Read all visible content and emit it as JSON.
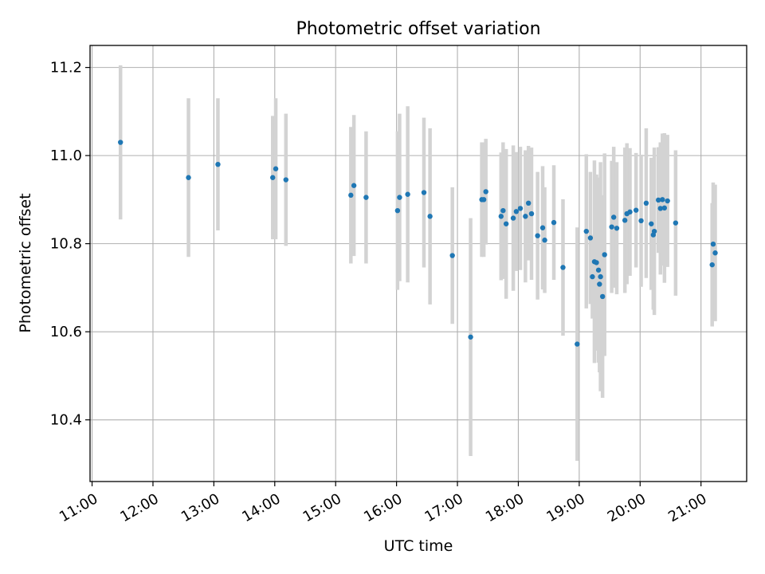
{
  "chart_data": {
    "type": "scatter",
    "title": "Photometric offset variation",
    "xlabel": "UTC time",
    "ylabel": "Photometric offset",
    "x_unit": "UTC hours",
    "xlim": [
      "10:58",
      "21:45"
    ],
    "ylim": [
      10.26,
      11.25
    ],
    "x_ticks": [
      "11:00",
      "12:00",
      "13:00",
      "14:00",
      "15:00",
      "16:00",
      "17:00",
      "18:00",
      "19:00",
      "20:00",
      "21:00"
    ],
    "y_ticks": [
      10.4,
      10.6,
      10.8,
      11.0,
      11.2
    ],
    "grid": true,
    "colors": {
      "point": "#1f77b4",
      "errorbar": "#d3d3d3",
      "grid": "#b0b0b0"
    },
    "series": [
      {
        "x": [
          "11:28",
          "12:35",
          "13:04",
          "13:58",
          "14:01",
          "14:11",
          "15:15",
          "15:18",
          "15:30",
          "16:01",
          "16:03",
          "16:11",
          "16:27",
          "16:33",
          "16:55",
          "17:13",
          "17:24",
          "17:26",
          "17:28",
          "17:43",
          "17:45",
          "17:48",
          "17:55",
          "17:58",
          "18:02",
          "18:07",
          "18:10",
          "18:13",
          "18:19",
          "18:24",
          "18:26",
          "18:35",
          "18:44",
          "18:58",
          "19:07",
          "19:11",
          "19:13",
          "19:15",
          "19:17",
          "19:19",
          "19:20",
          "19:21",
          "19:23",
          "19:25",
          "19:32",
          "19:34",
          "19:37",
          "19:45",
          "19:47",
          "19:50",
          "19:56",
          "20:01",
          "20:06",
          "20:11",
          "20:13",
          "20:14",
          "20:18",
          "20:20",
          "20:22",
          "20:24",
          "20:27",
          "20:35",
          "21:11",
          "21:12",
          "21:14"
        ],
        "y": [
          11.03,
          10.95,
          10.98,
          10.95,
          10.97,
          10.945,
          10.91,
          10.932,
          10.905,
          10.875,
          10.905,
          10.912,
          10.916,
          10.862,
          10.773,
          10.588,
          10.9,
          10.9,
          10.918,
          10.862,
          10.875,
          10.845,
          10.858,
          10.873,
          10.88,
          10.862,
          10.892,
          10.868,
          10.818,
          10.836,
          10.808,
          10.848,
          10.746,
          10.572,
          10.828,
          10.813,
          10.725,
          10.759,
          10.757,
          10.74,
          10.708,
          10.725,
          10.68,
          10.775,
          10.838,
          10.86,
          10.835,
          10.853,
          10.868,
          10.872,
          10.876,
          10.852,
          10.892,
          10.845,
          10.82,
          10.828,
          10.899,
          10.88,
          10.9,
          10.881,
          10.897,
          10.847,
          10.752,
          10.799,
          10.779
        ],
        "err": [
          0.175,
          0.18,
          0.15,
          0.14,
          0.16,
          0.15,
          0.155,
          0.16,
          0.15,
          0.18,
          0.19,
          0.2,
          0.17,
          0.2,
          0.155,
          0.27,
          0.13,
          0.13,
          0.12,
          0.145,
          0.155,
          0.17,
          0.165,
          0.135,
          0.14,
          0.15,
          0.13,
          0.15,
          0.145,
          0.14,
          0.12,
          0.13,
          0.155,
          0.265,
          0.175,
          0.15,
          0.095,
          0.23,
          0.2,
          0.21,
          0.2,
          0.26,
          0.23,
          0.23,
          0.15,
          0.16,
          0.15,
          0.165,
          0.16,
          0.145,
          0.13,
          0.15,
          0.17,
          0.15,
          0.17,
          0.19,
          0.12,
          0.15,
          0.15,
          0.17,
          0.15,
          0.165,
          0.14,
          0.14,
          0.155
        ]
      }
    ]
  }
}
